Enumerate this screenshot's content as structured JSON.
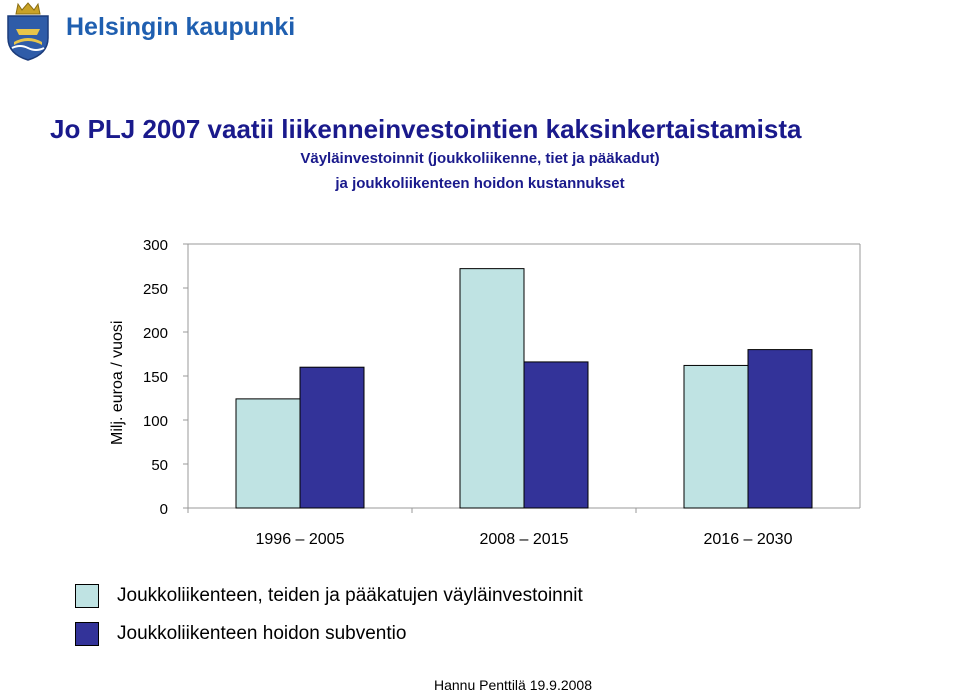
{
  "header": {
    "logo_text": "Helsingin kaupunki",
    "title": "Jo PLJ 2007 vaatii liikenneinvestointien kaksinkertaistamista",
    "subtitle_line1": "Väyläinvestoinnit (joukkoliikenne, tiet ja pääkadut)",
    "subtitle_line2": "ja joukkoliikenteen hoidon kustannukset"
  },
  "colors": {
    "series1": "#bfe3e3",
    "series2": "#333399",
    "title": "#1a1a8c",
    "logo_blue": "#1f5fb0"
  },
  "chart_data": {
    "type": "bar",
    "title": "",
    "xlabel": "",
    "ylabel": "Milj. euroa / vuosi",
    "ylim": [
      0,
      300
    ],
    "yticks": [
      0,
      50,
      100,
      150,
      200,
      250,
      300
    ],
    "grid": false,
    "legend_position": "bottom",
    "categories": [
      "1996 – 2005",
      "2008 – 2015",
      "2016 – 2030"
    ],
    "series": [
      {
        "name": "Joukkoliikenteen, teiden ja pääkatujen väyläinvestoinnit",
        "values": [
          124,
          272,
          162
        ]
      },
      {
        "name": "Joukkoliikenteen hoidon subventio",
        "values": [
          160,
          166,
          180
        ]
      }
    ]
  },
  "footer": "Hannu Penttilä 19.9.2008"
}
